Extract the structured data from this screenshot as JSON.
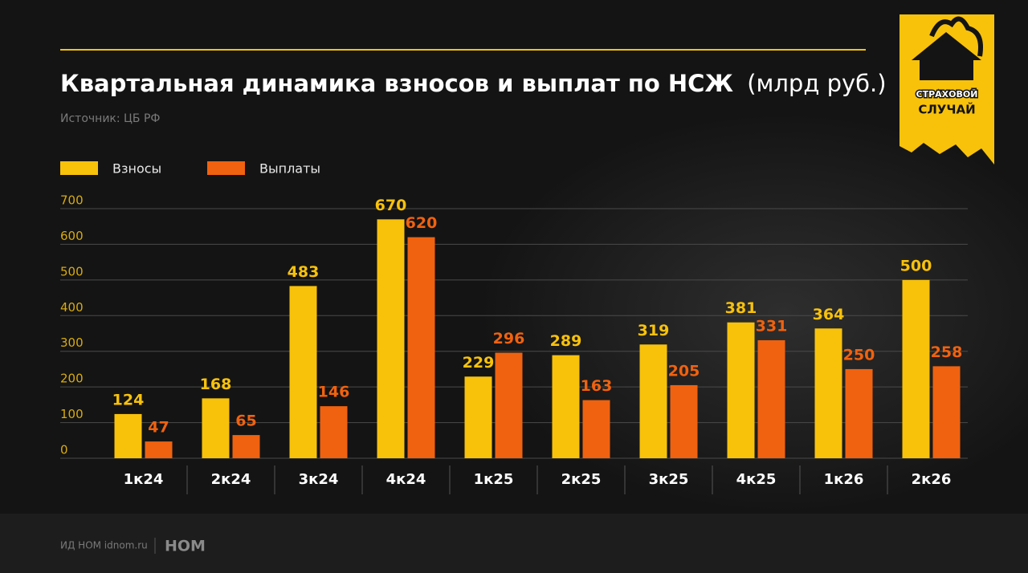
{
  "chart_data": {
    "type": "bar",
    "title": "Квартальная динамика взносов и выплат по НСЖ",
    "unit": "(млрд руб.)",
    "source": "Источник: ЦБ РФ",
    "categories": [
      "1к24",
      "2к24",
      "3к24",
      "4к24",
      "1к25",
      "2к25",
      "3к25",
      "4к25",
      "1к26",
      "2к26"
    ],
    "series": [
      {
        "name": "Взносы",
        "color": "#f8c20b",
        "values": [
          124,
          168,
          483,
          670,
          229,
          289,
          319,
          381,
          364,
          500
        ]
      },
      {
        "name": "Выплаты",
        "color": "#f0620f",
        "values": [
          47,
          65,
          146,
          620,
          296,
          163,
          205,
          331,
          250,
          258
        ]
      }
    ],
    "ylim": [
      0,
      700
    ],
    "yticks": [
      0,
      100,
      200,
      300,
      400,
      500,
      600,
      700
    ],
    "grid": true
  },
  "logo": {
    "line1": "СТРАХОВОЙ",
    "line2": "СЛУЧАЙ"
  },
  "footer": {
    "publisher": "ИД НОМ idnom.ru",
    "brand": "НОМ"
  }
}
